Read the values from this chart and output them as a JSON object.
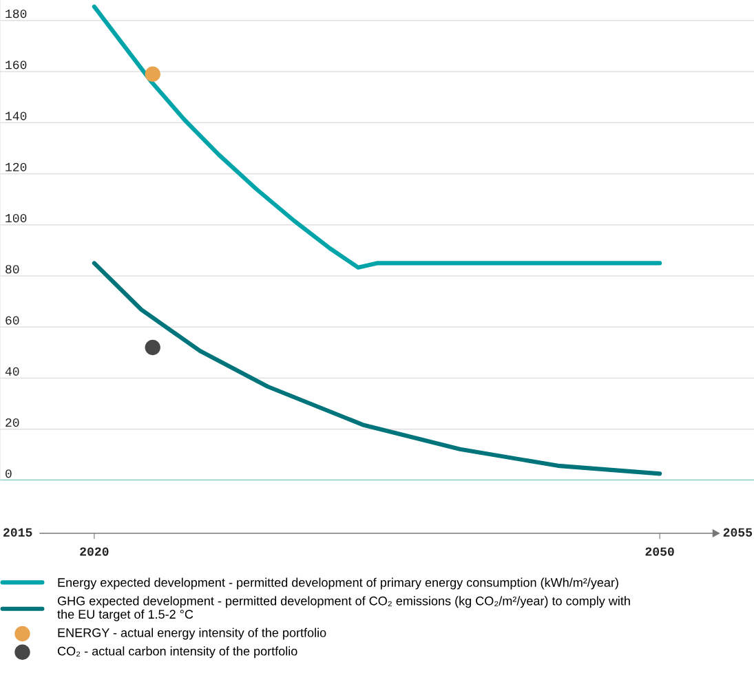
{
  "chart_data": {
    "type": "line",
    "xlim": [
      2015,
      2055
    ],
    "xticks": [
      2020,
      2050
    ],
    "annotations": [
      "2015",
      "2055"
    ],
    "ylim": [
      0,
      188
    ],
    "yticks": [
      0,
      20,
      40,
      60,
      80,
      100,
      120,
      140,
      160,
      180
    ],
    "grid": "y",
    "legend": "bottom",
    "marker": "none",
    "line_style": "solid",
    "ref_lines": [
      {
        "axis": "y",
        "value": 0,
        "label": null,
        "color": "#3aa9ab"
      }
    ],
    "series": [
      {
        "name": "Energy expected development - permitted development of primary energy consumption (kWh/m²/year)",
        "color": "#00a4a9",
        "x": [
          2020,
          2023.0,
          2024.8,
          2026.6,
          2028.6,
          2030.6,
          2032.5,
          2034.0,
          2035.0,
          2050
        ],
        "values": [
          185.4,
          156.3,
          141,
          127.5,
          114,
          101.6,
          90.8,
          83.3,
          85,
          85
        ]
      },
      {
        "name": "GHG expected development - permitted development of CO₂ emissions (kg CO₂/m²/year) to comply with\nthe EU target of 1.5-2 °C",
        "color": "#00747b",
        "x": [
          2020,
          2022.5,
          2025.6,
          2029.2,
          2034.3,
          2039.4,
          2044.6,
          2050
        ],
        "values": [
          85,
          66.8,
          50.7,
          36.7,
          21.6,
          12.2,
          5.7,
          2.6
        ]
      },
      {
        "name": "ENERGY - actual energy intensity of the portfolio",
        "type": "scatter",
        "marker": "circle",
        "color": "#e8a44f",
        "x": [
          2023.1
        ],
        "values": [
          159
        ]
      },
      {
        "name": "CO₂ - actual carbon intensity of the portfolio",
        "type": "scatter",
        "marker": "circle",
        "color": "#474747",
        "x": [
          2023.1
        ],
        "values": [
          52
        ]
      }
    ]
  }
}
